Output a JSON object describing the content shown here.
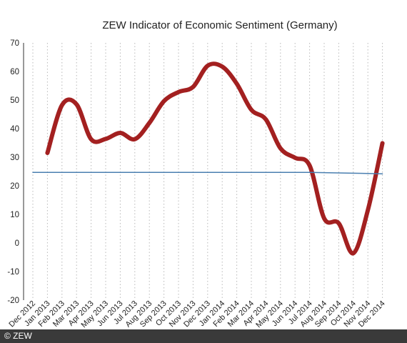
{
  "copyright": "© ZEW",
  "chart_data": {
    "type": "line",
    "title": "ZEW Indicator of Economic Sentiment (Germany)",
    "xlabel": "",
    "ylabel": "",
    "categories": [
      "Dec 2012",
      "Jan 2013",
      "Feb 2013",
      "Mar 2013",
      "Apr 2013",
      "May 2013",
      "Jun 2013",
      "Jul 2013",
      "Aug 2013",
      "Sep 2013",
      "Oct 2013",
      "Nov 2013",
      "Dec 2013",
      "Jan 2014",
      "Feb 2014",
      "Mar 2014",
      "Apr 2014",
      "May 2014",
      "Jun 2014",
      "Jul 2014",
      "Aug 2014",
      "Sep 2014",
      "Oct 2014",
      "Nov 2014",
      "Dec 2014"
    ],
    "ylim": [
      -20,
      70
    ],
    "yticks": [
      "-20",
      "-10",
      "0",
      "10",
      "20",
      "30",
      "40",
      "50",
      "60",
      "70"
    ],
    "grid": "vertical dotted",
    "series": [
      {
        "values": [
          null,
          31.5,
          48.2,
          48.5,
          36.3,
          36.4,
          38.5,
          36.3,
          42.0,
          49.6,
          52.8,
          54.6,
          62.0,
          61.7,
          55.7,
          46.6,
          43.2,
          33.1,
          29.8,
          27.1,
          8.6,
          6.9,
          -3.6,
          11.5,
          34.9
        ],
        "color": "#a32020"
      },
      {
        "values": [
          24.7,
          24.7,
          24.7,
          24.7,
          24.7,
          24.7,
          24.7,
          24.7,
          24.7,
          24.7,
          24.7,
          24.7,
          24.7,
          24.7,
          24.7,
          24.7,
          24.7,
          24.7,
          24.7,
          24.7,
          24.6,
          24.5,
          24.4,
          24.3,
          24.2
        ],
        "color": "#4a7fb0"
      }
    ]
  }
}
